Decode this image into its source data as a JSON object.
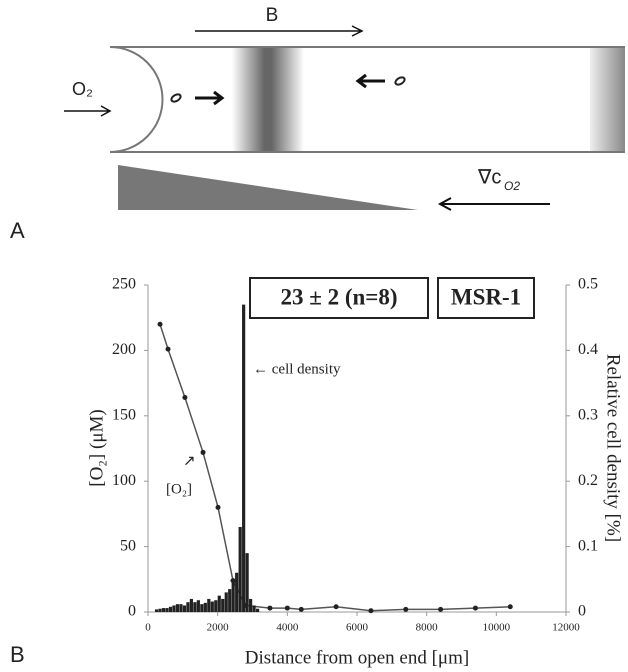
{
  "diagram": {
    "panel_label": "A",
    "field_label": "B",
    "oxygen_label": "O₂",
    "gradient_symbol": "∇c",
    "gradient_subscript": "O2"
  },
  "chart_data": {
    "type": "combo",
    "panel_label": "B",
    "x_label": "Distance from open end [μm]",
    "y_label": "[O₂] (μM)",
    "y2_label": "Relative cell density [%]",
    "annotations": {
      "result": "23 ± 2 (n=8)",
      "strain": "MSR-1",
      "cell_density": "← cell density",
      "oxygen": "[O₂]",
      "oxygen_arrow": "↗"
    },
    "xlim": [
      0,
      12000
    ],
    "xticks": [
      0,
      2000,
      4000,
      6000,
      8000,
      10000,
      12000
    ],
    "ylim": [
      0,
      250
    ],
    "yticks": [
      0,
      50,
      100,
      150,
      200,
      250
    ],
    "y2lim": [
      0,
      0.5
    ],
    "y2ticks": [
      0,
      0.1,
      0.2,
      0.3,
      0.4,
      0.5
    ],
    "series": [
      {
        "type": "line",
        "color": "#555555",
        "x": [
          345,
          575,
          1060,
          1580,
          2010,
          2440,
          2800,
          3500,
          4000,
          4400,
          5400,
          6400,
          7400,
          8400,
          9400,
          10400
        ],
        "values": [
          220,
          201,
          164,
          122,
          80,
          24,
          5,
          3,
          3,
          2,
          4,
          1,
          2,
          2,
          3,
          4
        ]
      },
      {
        "type": "histogram",
        "axis": "y2",
        "color": "#222222",
        "bins": [
          200,
          300,
          400,
          500,
          600,
          700,
          800,
          900,
          1000,
          1100,
          1200,
          1300,
          1400,
          1500,
          1600,
          1700,
          1800,
          1900,
          2000,
          2100,
          2200,
          2300,
          2400,
          2500,
          2600,
          2700,
          2800,
          2900,
          3000,
          3100,
          3200
        ],
        "values": [
          0.004,
          0.005,
          0.006,
          0.006,
          0.008,
          0.01,
          0.012,
          0.012,
          0.01,
          0.015,
          0.02,
          0.015,
          0.018,
          0.012,
          0.014,
          0.02,
          0.016,
          0.018,
          0.025,
          0.02,
          0.03,
          0.035,
          0.05,
          0.06,
          0.13,
          0.47,
          0.09,
          0.02,
          0.01,
          0.005
        ]
      }
    ]
  }
}
